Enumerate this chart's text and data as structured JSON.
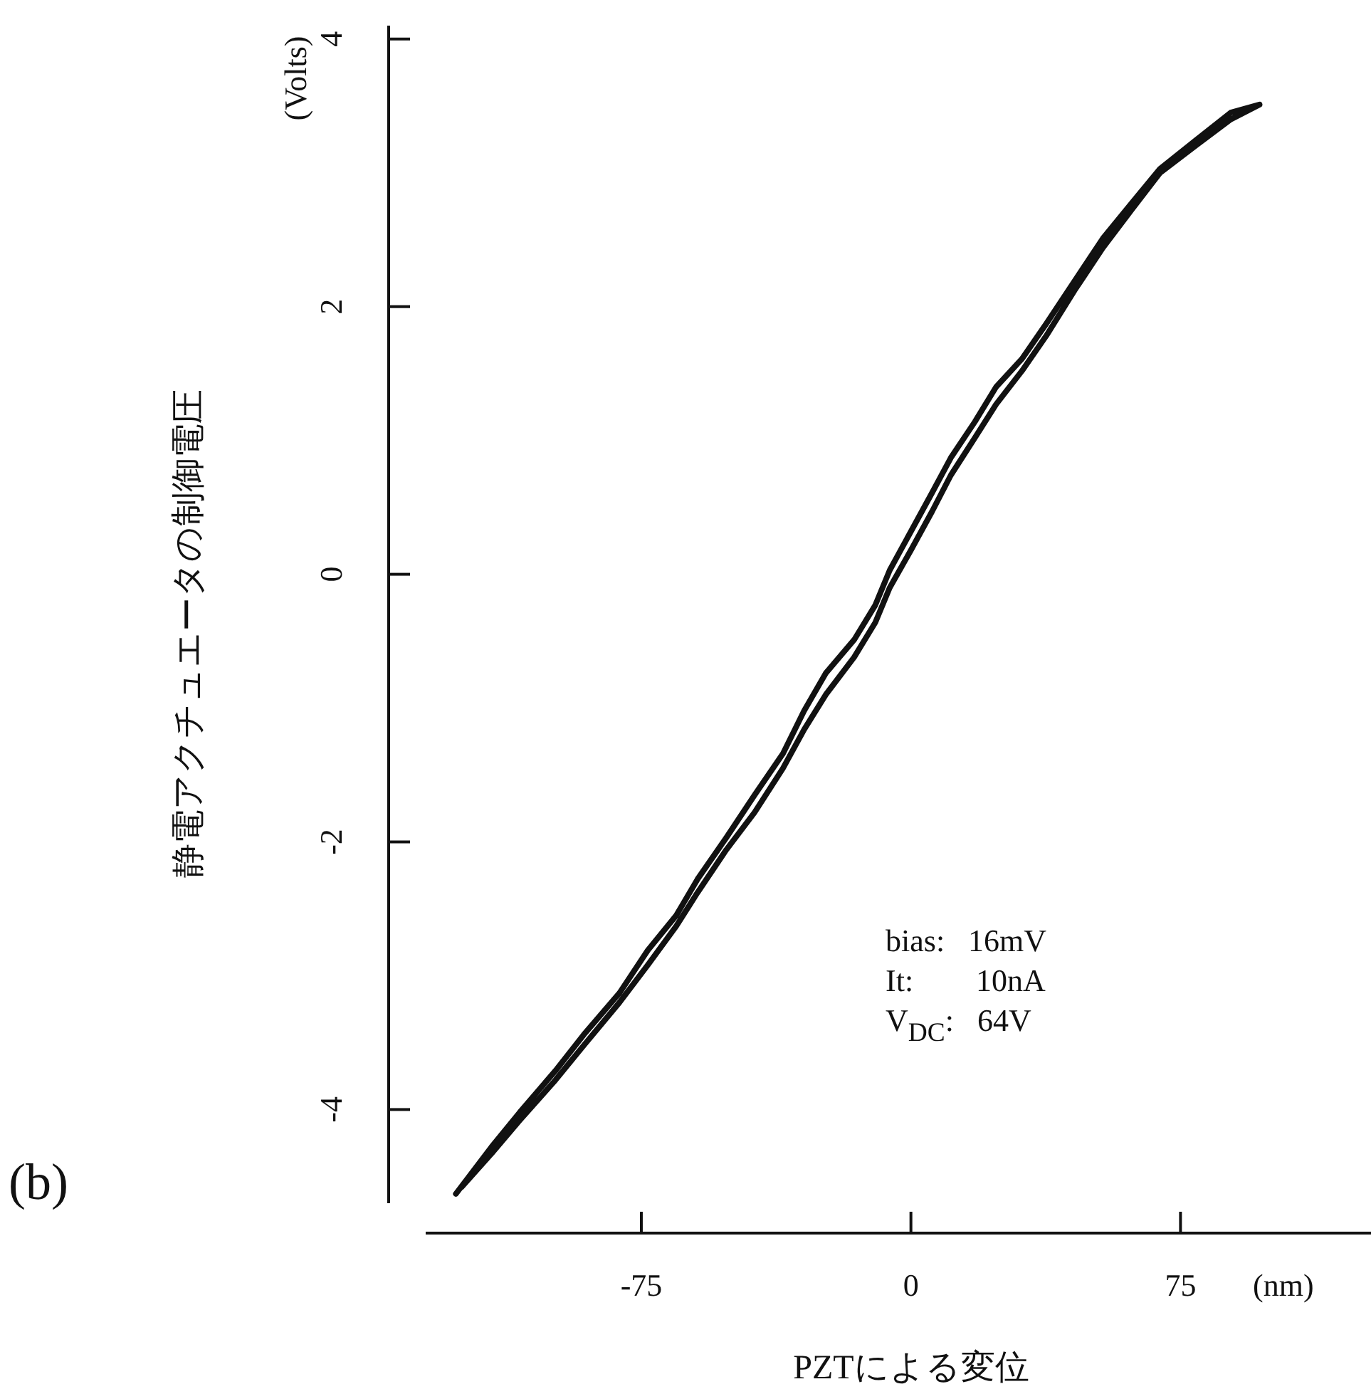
{
  "chart_data": {
    "type": "line",
    "xlabel": "PZTによる変位",
    "ylabel": "静電アクチュエータの制御電圧",
    "xlim": [
      -135,
      128
    ],
    "ylim": [
      -4.7,
      4.1
    ],
    "xticks": [
      -75,
      0,
      75
    ],
    "yticks": [
      -4,
      -2,
      0,
      2,
      4
    ],
    "marker": "none",
    "line_style": "solid",
    "annotations": [
      "bias:   16mV",
      "It:        10nA",
      "V$_{DC}$:   64V",
      "(b)",
      "(Volts)",
      "(nm)"
    ],
    "series": [
      {
        "color": "#111111",
        "x": [
          -126.6,
          -116.7,
          -108.8,
          -98.9,
          -91.0,
          -81.1,
          -73.2,
          -65.3,
          -59.4,
          -51.4,
          -43.5,
          -35.6,
          -29.7,
          -23.7,
          -15.8,
          -9.9,
          -5.9,
          0,
          5.9,
          11.1,
          17.8,
          23.7,
          30.9,
          37.6,
          45.5,
          53.4,
          61.3,
          69.3,
          79.1,
          89.0,
          97.0,
          89.0,
          79.1,
          69.3,
          61.3,
          53.4,
          45.5,
          37.6,
          30.9,
          23.7,
          17.8,
          11.1,
          5.9,
          0,
          -5.9,
          -9.9,
          -15.8,
          -23.7,
          -29.7,
          -35.6,
          -43.5,
          -51.4,
          -59.4,
          -65.3,
          -73.2,
          -81.1,
          -91.0,
          -98.9,
          -108.8,
          -116.7,
          -125.0
        ],
        "values": [
          -4.63,
          -4.28,
          -4.02,
          -3.71,
          -3.44,
          -3.13,
          -2.81,
          -2.55,
          -2.28,
          -1.97,
          -1.65,
          -1.34,
          -1.02,
          -0.74,
          -0.49,
          -0.23,
          0.03,
          0.32,
          0.61,
          0.87,
          1.14,
          1.4,
          1.61,
          1.87,
          2.19,
          2.51,
          2.77,
          3.03,
          3.24,
          3.45,
          3.51,
          3.4,
          3.2,
          3.0,
          2.72,
          2.44,
          2.12,
          1.78,
          1.52,
          1.27,
          1.02,
          0.74,
          0.47,
          0.18,
          -0.1,
          -0.36,
          -0.62,
          -0.9,
          -1.16,
          -1.45,
          -1.78,
          -2.06,
          -2.38,
          -2.63,
          -2.92,
          -3.2,
          -3.52,
          -3.78,
          -4.08,
          -4.33,
          -4.58
        ]
      }
    ]
  }
}
